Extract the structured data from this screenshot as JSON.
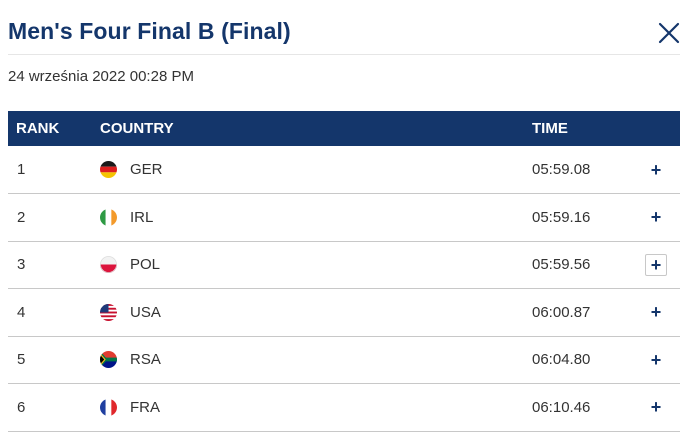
{
  "modal": {
    "title": "Men's Four Final B (Final)",
    "date": "24 września 2022 00:28 PM",
    "close_icon": "close-icon"
  },
  "table": {
    "headers": {
      "rank": "RANK",
      "country": "COUNTRY",
      "time": "TIME"
    },
    "rows": [
      {
        "rank": "1",
        "country": "GER",
        "flag": "flag-germany-icon",
        "time": "05:59.08",
        "expand": "+"
      },
      {
        "rank": "2",
        "country": "IRL",
        "flag": "flag-ireland-icon",
        "time": "05:59.16",
        "expand": "+"
      },
      {
        "rank": "3",
        "country": "POL",
        "flag": "flag-poland-icon",
        "time": "05:59.56",
        "expand": "+"
      },
      {
        "rank": "4",
        "country": "USA",
        "flag": "flag-usa-icon",
        "time": "06:00.87",
        "expand": "+"
      },
      {
        "rank": "5",
        "country": "RSA",
        "flag": "flag-south-africa-icon",
        "time": "06:04.80",
        "expand": "+"
      },
      {
        "rank": "6",
        "country": "FRA",
        "flag": "flag-france-icon",
        "time": "06:10.46",
        "expand": "+"
      }
    ]
  },
  "colors": {
    "brand": "#14366b",
    "divider": "#c8c8c8"
  }
}
